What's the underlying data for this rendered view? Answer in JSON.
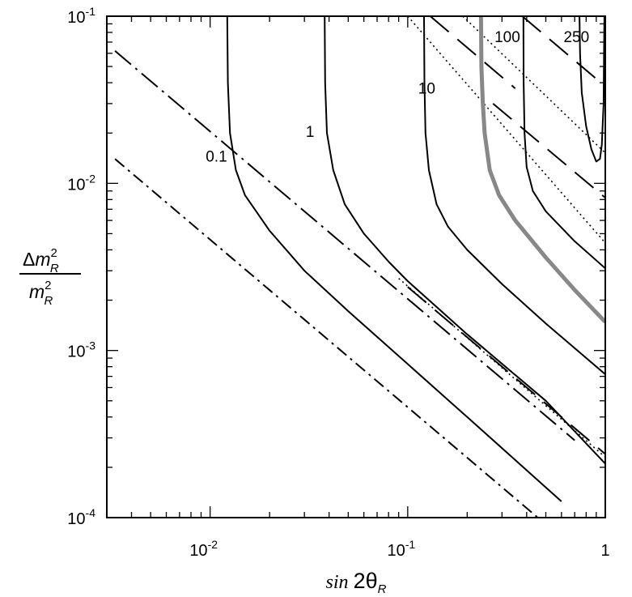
{
  "chart_data": {
    "type": "line",
    "title": "",
    "x_scale": "log",
    "y_scale": "log",
    "xlim": [
      0.003,
      1
    ],
    "ylim": [
      0.0001,
      0.1
    ],
    "xlabel": {
      "prefix": "sin ",
      "main": "2θ",
      "sub": "R"
    },
    "ylabel": {
      "numerator": {
        "prefix": "Δ",
        "base": "m",
        "sup": "2",
        "sub": "R"
      },
      "denominator": {
        "base": "m",
        "sup": "2",
        "sub": "R"
      }
    },
    "x_ticks": [
      {
        "value": 0.01,
        "base": "10",
        "exp": "-2"
      },
      {
        "value": 0.1,
        "base": "10",
        "exp": "-1"
      },
      {
        "value": 1,
        "base": "1",
        "exp": ""
      }
    ],
    "y_ticks": [
      {
        "value": 0.1,
        "base": "10",
        "exp": "-1"
      },
      {
        "value": 0.01,
        "base": "10",
        "exp": "-2"
      },
      {
        "value": 0.001,
        "base": "10",
        "exp": "-3"
      },
      {
        "value": 0.0001,
        "base": "10",
        "exp": "-4"
      }
    ],
    "grid": false,
    "contours": [
      {
        "label": "0.1",
        "label_at": [
          0.0095,
          0.0135
        ],
        "style": "solid",
        "color": "#000000",
        "width": 2,
        "points": [
          [
            0.0122,
            0.1
          ],
          [
            0.0123,
            0.04
          ],
          [
            0.0126,
            0.02
          ],
          [
            0.0135,
            0.012
          ],
          [
            0.015,
            0.0085
          ],
          [
            0.02,
            0.0052
          ],
          [
            0.03,
            0.003
          ],
          [
            0.05,
            0.00172
          ],
          [
            0.1,
            0.00083
          ],
          [
            0.2,
            0.0004
          ],
          [
            0.4,
            0.000192
          ],
          [
            0.6,
            0.000125
          ]
        ]
      },
      {
        "label": "1",
        "label_at": [
          0.0305,
          0.019
        ],
        "style": "solid",
        "color": "#000000",
        "width": 2,
        "points": [
          [
            0.038,
            0.1
          ],
          [
            0.0382,
            0.04
          ],
          [
            0.039,
            0.02
          ],
          [
            0.042,
            0.012
          ],
          [
            0.048,
            0.0075
          ],
          [
            0.06,
            0.005
          ],
          [
            0.08,
            0.0034
          ],
          [
            0.1,
            0.0026
          ],
          [
            0.2,
            0.00125
          ],
          [
            0.5,
            0.0005
          ],
          [
            1,
            0.00021
          ]
        ]
      },
      {
        "label": "10",
        "label_at": [
          0.113,
          0.0345
        ],
        "style": "solid",
        "color": "#000000",
        "width": 2,
        "points": [
          [
            0.121,
            0.1
          ],
          [
            0.1215,
            0.04
          ],
          [
            0.123,
            0.02
          ],
          [
            0.128,
            0.012
          ],
          [
            0.14,
            0.0075
          ],
          [
            0.16,
            0.0055
          ],
          [
            0.2,
            0.004
          ],
          [
            0.3,
            0.0025
          ],
          [
            0.5,
            0.00145
          ],
          [
            1,
            0.00072
          ]
        ]
      },
      {
        "label": "100",
        "label_at": [
          0.275,
          0.07
        ],
        "style": "solid",
        "color": "#888888",
        "width": 5,
        "points": [
          [
            0.235,
            0.1
          ],
          [
            0.236,
            0.05
          ],
          [
            0.24,
            0.03
          ],
          [
            0.245,
            0.02
          ],
          [
            0.26,
            0.012
          ],
          [
            0.29,
            0.0085
          ],
          [
            0.35,
            0.006
          ],
          [
            0.5,
            0.0036
          ],
          [
            0.7,
            0.0023
          ],
          [
            1,
            0.00148
          ]
        ]
      },
      {
        "label": "250",
        "label_at": [
          0.615,
          0.07
        ],
        "style": "solid",
        "color": "#000000",
        "width": 2,
        "points": [
          [
            0.385,
            0.1
          ],
          [
            0.386,
            0.04
          ],
          [
            0.39,
            0.02
          ],
          [
            0.4,
            0.0125
          ],
          [
            0.43,
            0.009
          ],
          [
            0.5,
            0.0068
          ],
          [
            0.7,
            0.0045
          ],
          [
            1,
            0.0031
          ]
        ]
      },
      {
        "label": "",
        "style": "solid",
        "color": "#000000",
        "width": 2,
        "points": [
          [
            0.74,
            0.1
          ],
          [
            0.745,
            0.06
          ],
          [
            0.76,
            0.035
          ],
          [
            0.8,
            0.022
          ],
          [
            0.85,
            0.016
          ],
          [
            0.9,
            0.0135
          ],
          [
            0.94,
            0.014
          ],
          [
            0.96,
            0.017
          ],
          [
            0.98,
            0.03
          ],
          [
            0.985,
            0.06
          ],
          [
            0.99,
            0.1
          ]
        ]
      }
    ],
    "reference_lines": [
      {
        "style": "dashdot-long",
        "points": [
          [
            0.0033,
            0.062
          ],
          [
            0.7,
            0.00029
          ]
        ]
      },
      {
        "style": "dashdot",
        "points": [
          [
            0.0033,
            0.014
          ],
          [
            0.7,
            6.5e-05
          ]
        ]
      },
      {
        "style": "dashed",
        "points": [
          [
            0.13,
            0.1
          ],
          [
            0.35,
            0.037
          ]
        ]
      },
      {
        "style": "dashed",
        "points": [
          [
            0.38,
            0.1
          ],
          [
            1,
            0.038
          ]
        ]
      },
      {
        "style": "dashed",
        "points": [
          [
            0.27,
            0.03
          ],
          [
            1,
            0.0082
          ]
        ]
      },
      {
        "style": "dashed",
        "points": [
          [
            0.1,
            0.0024
          ],
          [
            1,
            0.00024
          ]
        ]
      },
      {
        "style": "dotted",
        "points": [
          [
            0.1,
            0.1
          ],
          [
            1,
            0.0044
          ]
        ]
      },
      {
        "style": "dotted",
        "points": [
          [
            0.19,
            0.1
          ],
          [
            1,
            0.0152
          ]
        ]
      },
      {
        "style": "dotted",
        "points": [
          [
            0.09,
            0.0027
          ],
          [
            1,
            0.00023
          ]
        ]
      }
    ]
  }
}
